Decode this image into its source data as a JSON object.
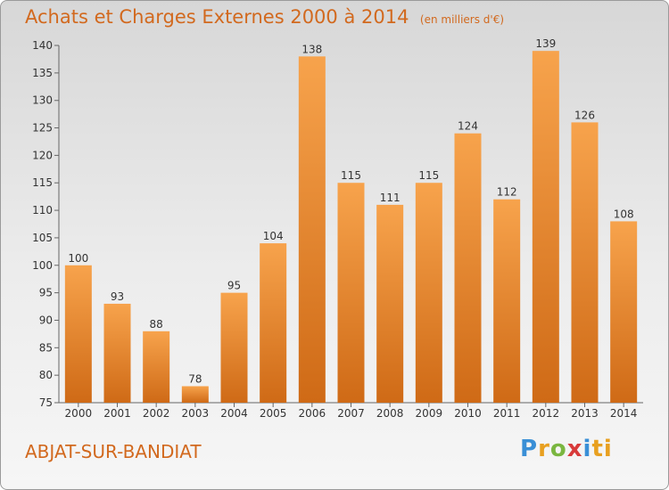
{
  "header": {
    "title": "Achats et Charges Externes 2000 à 2014",
    "unit": "(en milliers d'€)"
  },
  "footer": {
    "commune": "ABJAT-SUR-BANDIAT",
    "logo": "Proxiti"
  },
  "colors": {
    "bar_light": "#f7a34c",
    "bar_dark": "#cf6a16",
    "title": "#d2691e"
  },
  "chart_data": {
    "type": "bar",
    "title": "Achats et Charges Externes 2000 à 2014",
    "subtitle": "(en milliers d'€)",
    "categories": [
      "2000",
      "2001",
      "2002",
      "2003",
      "2004",
      "2005",
      "2006",
      "2007",
      "2008",
      "2009",
      "2010",
      "2011",
      "2012",
      "2013",
      "2014"
    ],
    "values": [
      100,
      93,
      88,
      78,
      95,
      104,
      138,
      115,
      111,
      115,
      124,
      112,
      139,
      126,
      108
    ],
    "ylim": [
      75,
      140
    ],
    "yticks": [
      75,
      80,
      85,
      90,
      95,
      100,
      105,
      110,
      115,
      120,
      125,
      130,
      135,
      140
    ],
    "grid": false,
    "data_labels": true
  }
}
